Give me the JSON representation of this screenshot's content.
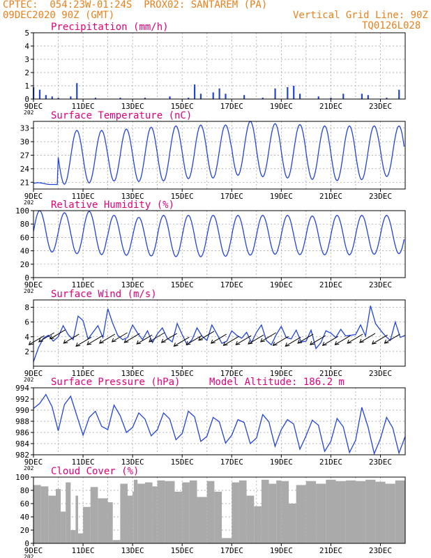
{
  "header": {
    "line1_left": "CPTEC:  054:23W-01:24S  PROX02: SANTAREM (PA)",
    "line2_left": "09DEC2020 90Z (GMT)",
    "line2_right": "Vertical Grid Line: 90Z",
    "line3_right": "TQ0126L028"
  },
  "colors": {
    "header": "#e8801c",
    "title": "#e0007a",
    "series": "#2244dd",
    "cloud": "#aaaaaa",
    "grid": "#999999",
    "arrow": "#000000"
  },
  "x_axis": {
    "start": "2020-12-09",
    "end": "2020-12-24",
    "tick_labels": [
      "9DEC",
      "11DEC",
      "13DEC",
      "15DEC",
      "17DEC",
      "19DEC",
      "21DEC",
      "23DEC"
    ],
    "tick_dates": [
      "2020-12-09",
      "2020-12-11",
      "2020-12-13",
      "2020-12-15",
      "2020-12-17",
      "2020-12-19",
      "2020-12-21",
      "2020-12-23"
    ],
    "year_stub": "202"
  },
  "chart_data": [
    {
      "id": "precip",
      "type": "bar",
      "title": "Precipitation (mm/h)",
      "ylim": [
        0,
        5
      ],
      "yticks": [
        0,
        1,
        2,
        3,
        4,
        5
      ],
      "x": [
        "2020-12-09 00:00",
        "2020-12-09 06:00",
        "2020-12-09 12:00",
        "2020-12-09 18:00",
        "2020-12-10 00:00",
        "2020-12-10 12:00",
        "2020-12-10 18:00",
        "2020-12-11 12:00",
        "2020-12-12 12:00",
        "2020-12-13 12:00",
        "2020-12-14 12:00",
        "2020-12-15 06:00",
        "2020-12-15 12:00",
        "2020-12-15 18:00",
        "2020-12-16 06:00",
        "2020-12-16 12:00",
        "2020-12-16 18:00",
        "2020-12-17 12:00",
        "2020-12-18 06:00",
        "2020-12-18 18:00",
        "2020-12-19 06:00",
        "2020-12-19 12:00",
        "2020-12-19 18:00",
        "2020-12-20 12:00",
        "2020-12-21 00:00",
        "2020-12-21 12:00",
        "2020-12-22 06:00",
        "2020-12-22 12:00",
        "2020-12-23 06:00",
        "2020-12-23 18:00"
      ],
      "values": [
        0.9,
        0.7,
        0.3,
        0.2,
        0.1,
        0.2,
        1.2,
        0.1,
        0.1,
        0.1,
        0.2,
        0.1,
        1.1,
        0.4,
        0.5,
        0.8,
        0.4,
        0.3,
        0.1,
        0.8,
        0.9,
        1.0,
        0.4,
        0.2,
        0.1,
        0.4,
        0.4,
        0.3,
        0.1,
        0.7
      ]
    },
    {
      "id": "temp",
      "type": "line",
      "title": "Surface Temperature (nC)",
      "ylim": [
        19.5,
        34.5
      ],
      "yticks": [
        21,
        24,
        27,
        30,
        33
      ],
      "daily_max": [
        20.5,
        32.5,
        32.5,
        32.8,
        33.2,
        33.5,
        33.7,
        33.7,
        34.5,
        34.0,
        33.8,
        33.5,
        33.5,
        33.5,
        33.5,
        33.5
      ],
      "daily_min": [
        21.0,
        20.5,
        20.7,
        21.3,
        21.2,
        21.1,
        21.8,
        21.7,
        22.6,
        22.3,
        22.0,
        21.7,
        21.4,
        21.2,
        22.7,
        21.0
      ]
    },
    {
      "id": "rh",
      "type": "line",
      "title": "Relative Humidity (%)",
      "ylim": [
        0,
        100
      ],
      "yticks": [
        0,
        20,
        40,
        60,
        80,
        100
      ],
      "daily_max": [
        100,
        97,
        99,
        93,
        90,
        93,
        93,
        93,
        93,
        93,
        93,
        92,
        93,
        93,
        93,
        93
      ],
      "daily_min": [
        38,
        38,
        35,
        34,
        33,
        32,
        31,
        31,
        32,
        34,
        35,
        34,
        34,
        34,
        35,
        36
      ]
    },
    {
      "id": "wind",
      "type": "line",
      "title": "Surface Wind (m/s)",
      "ylim": [
        0,
        9
      ],
      "yticks": [
        2,
        4,
        6,
        8
      ],
      "x_day": [
        0.0,
        0.2,
        0.4,
        0.6,
        0.8,
        1.0,
        1.2,
        1.4,
        1.6,
        1.8,
        2.0,
        2.2,
        2.4,
        2.6,
        2.8,
        3.0,
        3.2,
        3.4,
        3.6,
        3.8,
        4.0,
        4.2,
        4.4,
        4.6,
        4.8,
        5.0,
        5.2,
        5.4,
        5.6,
        5.8,
        6.0,
        6.2,
        6.4,
        6.6,
        6.8,
        7.0,
        7.2,
        7.4,
        7.6,
        7.8,
        8.0,
        8.2,
        8.4,
        8.6,
        8.8,
        9.0,
        9.2,
        9.4,
        9.6,
        9.8,
        10.0,
        10.2,
        10.4,
        10.6,
        10.8,
        11.0,
        11.2,
        11.4,
        11.6,
        11.8,
        12.0,
        12.2,
        12.4,
        12.6,
        12.8,
        13.0,
        13.2,
        13.4,
        13.6,
        13.8,
        14.0,
        14.2,
        14.4,
        14.6,
        14.8,
        15.0
      ],
      "values": [
        0.6,
        2.5,
        3.8,
        4.2,
        3.4,
        4.0,
        5.5,
        4.3,
        3.6,
        6.8,
        6.2,
        3.7,
        4.6,
        5.5,
        3.9,
        7.8,
        5.8,
        4.2,
        3.6,
        3.9,
        5.6,
        4.5,
        3.6,
        4.8,
        3.2,
        4.4,
        5.2,
        3.8,
        3.3,
        5.8,
        4.3,
        2.9,
        3.6,
        5.2,
        4.1,
        3.5,
        5.6,
        4.4,
        3.1,
        3.4,
        4.8,
        4.2,
        3.8,
        4.6,
        3.2,
        4.6,
        5.6,
        3.5,
        2.9,
        4.3,
        5.4,
        3.9,
        3.7,
        4.9,
        3.3,
        3.4,
        4.9,
        2.4,
        3.2,
        4.8,
        4.5,
        3.9,
        5.0,
        4.1,
        4.2,
        4.3,
        5.6,
        4.1,
        8.2,
        5.8,
        4.9,
        4.1,
        3.5,
        6.0,
        3.9,
        4.2
      ],
      "arrows_day": [
        0.1,
        0.5,
        0.95,
        1.5,
        2.0,
        2.45,
        2.95,
        3.45,
        3.95,
        4.45,
        4.95,
        5.45,
        5.95,
        6.45,
        6.95,
        7.45,
        7.95,
        8.45,
        8.95,
        9.45,
        9.95,
        10.45,
        10.95,
        11.45,
        11.95,
        12.45,
        12.95,
        13.45,
        13.95,
        14.45
      ],
      "arrows_speed": [
        3.2,
        3.6,
        4.0,
        3.4,
        3.0,
        3.2,
        3.4,
        3.6,
        3.5,
        3.3,
        3.6,
        3.5,
        3.0,
        3.2,
        3.8,
        3.4,
        3.1,
        3.2,
        3.3,
        3.6,
        3.1,
        3.0,
        3.4,
        3.2,
        3.1,
        3.2,
        3.4,
        3.5,
        3.3,
        3.4
      ]
    },
    {
      "id": "pressure",
      "type": "line",
      "title": "Surface Pressure (hPa)",
      "annotation": "Model Altitude: 186.2 m",
      "ylim": [
        982,
        994
      ],
      "yticks": [
        982,
        984,
        986,
        988,
        990,
        992,
        994
      ],
      "x_day": [
        0.0,
        0.25,
        0.5,
        0.75,
        1.0,
        1.25,
        1.5,
        1.75,
        2.0,
        2.25,
        2.5,
        2.75,
        3.0,
        3.25,
        3.5,
        3.75,
        4.0,
        4.25,
        4.5,
        4.75,
        5.0,
        5.25,
        5.5,
        5.75,
        6.0,
        6.25,
        6.5,
        6.75,
        7.0,
        7.25,
        7.5,
        7.75,
        8.0,
        8.25,
        8.5,
        8.75,
        9.0,
        9.25,
        9.5,
        9.75,
        10.0,
        10.25,
        10.5,
        10.75,
        11.0,
        11.25,
        11.5,
        11.75,
        12.0,
        12.25,
        12.5,
        12.75,
        13.0,
        13.25,
        13.5,
        13.75,
        14.0,
        14.25,
        14.5,
        14.75,
        15.0
      ],
      "values": [
        990.3,
        991.2,
        992.8,
        990.6,
        986.3,
        991.0,
        992.5,
        989.0,
        985.5,
        988.7,
        989.8,
        987.1,
        986.5,
        990.9,
        989.0,
        986.0,
        986.9,
        989.5,
        988.4,
        985.4,
        986.5,
        989.5,
        988.4,
        984.7,
        985.8,
        989.8,
        988.8,
        984.4,
        985.3,
        988.7,
        987.9,
        984.1,
        985.5,
        988.3,
        987.8,
        984.0,
        985.0,
        989.2,
        987.9,
        983.5,
        986.5,
        988.3,
        987.5,
        983.0,
        985.4,
        988.2,
        987.3,
        982.6,
        984.4,
        988.5,
        987.0,
        982.4,
        984.6,
        990.5,
        987.0,
        982.2,
        984.9,
        988.7,
        986.8,
        982.3,
        985.3
      ]
    },
    {
      "id": "cloud",
      "type": "bar",
      "title": "Cloud Cover (%)",
      "ylim": [
        0,
        100
      ],
      "yticks": [
        0,
        20,
        40,
        60,
        80,
        100
      ],
      "x_day": [
        0.0,
        0.3,
        0.6,
        0.9,
        1.1,
        1.3,
        1.5,
        1.7,
        1.8,
        2.0,
        2.3,
        2.6,
        3.0,
        3.2,
        3.5,
        3.8,
        4.0,
        4.05,
        4.2,
        4.5,
        4.8,
        5.0,
        5.3,
        5.7,
        6.0,
        6.3,
        6.6,
        7.0,
        7.3,
        7.6,
        8.0,
        8.3,
        8.6,
        8.9,
        9.2,
        9.5,
        9.8,
        10.0,
        10.3,
        10.6,
        11.0,
        11.4,
        11.8,
        12.2,
        12.6,
        13.0,
        13.4,
        13.8,
        14.2,
        14.6,
        14.99
      ],
      "values": [
        88,
        86,
        72,
        82,
        48,
        92,
        20,
        72,
        15,
        55,
        85,
        68,
        62,
        5,
        90,
        72,
        78,
        96,
        90,
        92,
        86,
        95,
        94,
        78,
        92,
        95,
        70,
        94,
        78,
        8,
        92,
        95,
        72,
        56,
        96,
        90,
        95,
        94,
        60,
        88,
        94,
        90,
        96,
        94,
        95,
        94,
        96,
        93,
        90,
        95,
        96
      ]
    }
  ]
}
